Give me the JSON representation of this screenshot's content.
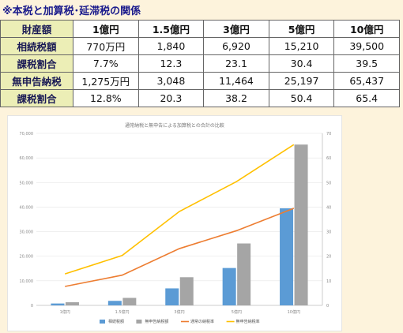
{
  "heading": "※本税と加算税･延滞税の関係",
  "table": {
    "corner": "財産額",
    "columns": [
      "1億円",
      "1.5億円",
      "3億円",
      "5億円",
      "10億円"
    ],
    "rows": [
      {
        "label": "相続税額",
        "values": [
          "770万円",
          "1,840",
          "6,920",
          "15,210",
          "39,500"
        ]
      },
      {
        "label": "課税割合",
        "values": [
          "7.7%",
          "12.3",
          "23.1",
          "30.4",
          "39.5"
        ]
      },
      {
        "label": "無申告納税",
        "values": [
          "1,275万円",
          "3,048",
          "11,464",
          "25,197",
          "65,437"
        ]
      },
      {
        "label": "課税割合",
        "values": [
          "12.8%",
          "20.3",
          "38.2",
          "50.4",
          "65.4"
        ]
      }
    ]
  },
  "chart_data": {
    "type": "bar",
    "title": "通常納税と無申告による加算税との合計の比較",
    "categories": [
      "1億円",
      "1.5億円",
      "3億円",
      "5億円",
      "10億円"
    ],
    "series": [
      {
        "name": "相続税額",
        "kind": "bar",
        "axis": "left",
        "color": "#5b9bd5",
        "values": [
          770,
          1840,
          6920,
          15210,
          39500
        ]
      },
      {
        "name": "無申告納税額",
        "kind": "bar",
        "axis": "left",
        "color": "#a5a5a5",
        "values": [
          1275,
          3048,
          11464,
          25197,
          65437
        ]
      },
      {
        "name": "通常の納税率",
        "kind": "line",
        "axis": "right",
        "color": "#ed7d31",
        "values": [
          7.7,
          12.3,
          23.1,
          30.4,
          39.5
        ]
      },
      {
        "name": "無申告納税率",
        "kind": "line",
        "axis": "right",
        "color": "#ffc000",
        "values": [
          12.8,
          20.3,
          38.2,
          50.4,
          65.4
        ]
      }
    ],
    "ylim_left": [
      0,
      70000
    ],
    "yticks_left": [
      "0",
      "10,000",
      "20,000",
      "30,000",
      "40,000",
      "50,000",
      "60,000",
      "70,000"
    ],
    "ylim_right": [
      0,
      70
    ],
    "yticks_right": [
      "0",
      "10",
      "20",
      "30",
      "40",
      "50",
      "60",
      "70"
    ],
    "grid": true,
    "legend": "bottom"
  }
}
